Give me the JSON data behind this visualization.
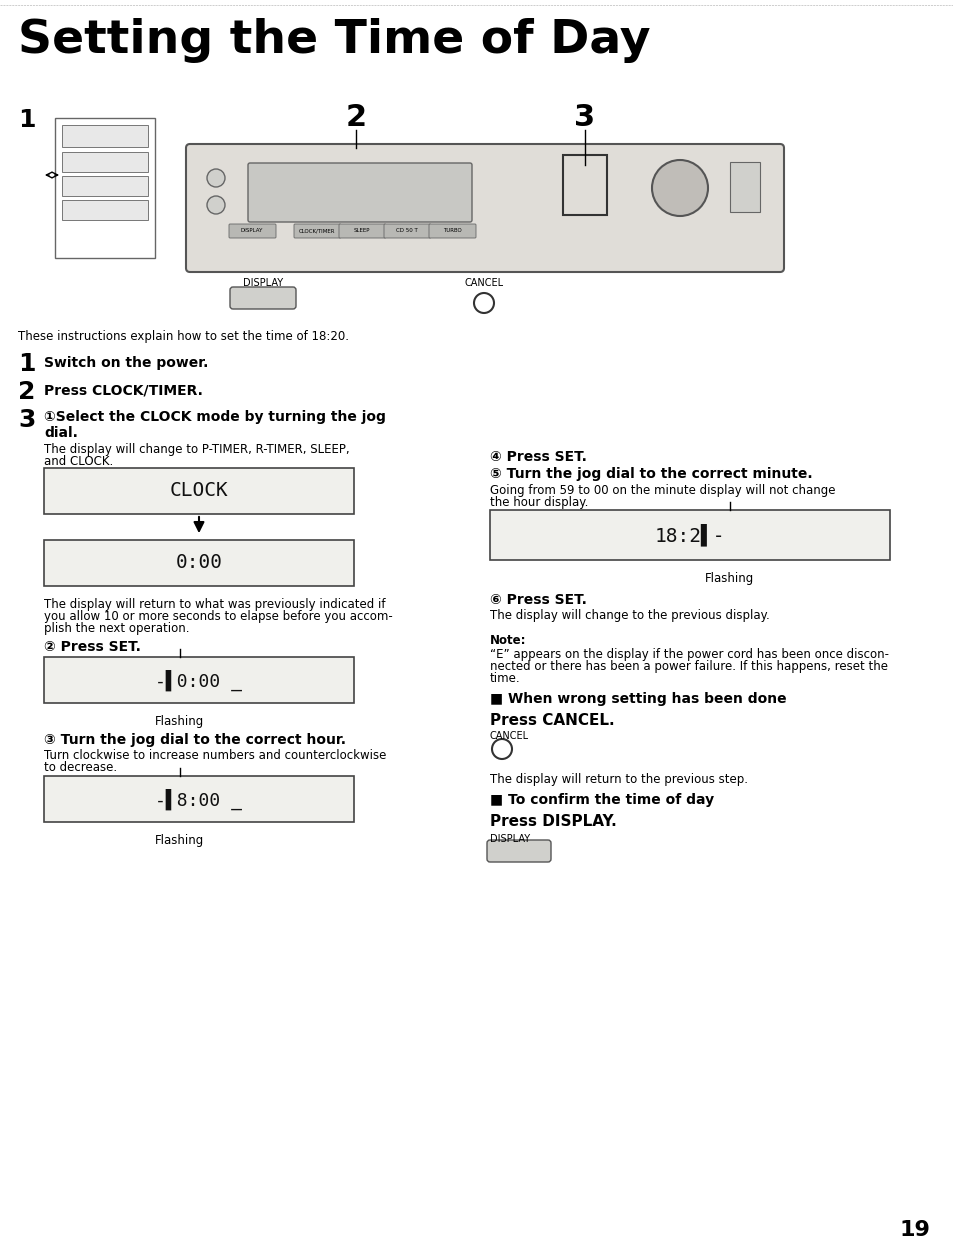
{
  "title": "Setting the Time of Day",
  "bg_color": "#ffffff",
  "intro_text": "These instructions explain how to set the time of 18:20.",
  "step1": "Switch on the power.",
  "step2": "Press CLOCK/TIMER.",
  "page_num": "19"
}
